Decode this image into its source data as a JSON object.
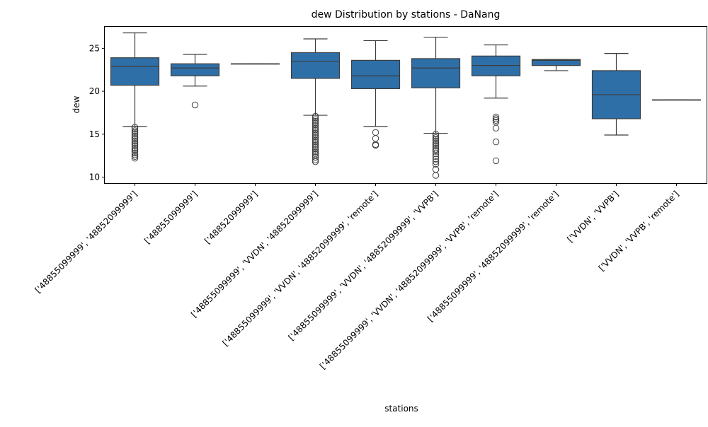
{
  "chart_data": {
    "type": "box",
    "title": "dew Distribution by stations - DaNang",
    "xlabel": "stations",
    "ylabel": "dew",
    "ylim": [
      9.3,
      27.5
    ],
    "yticks": [
      10,
      15,
      20,
      25
    ],
    "grid": false,
    "legend": "none",
    "colors": {
      "box": "#2f6fa7",
      "line": "#3d3d3d"
    },
    "categories": [
      "['48855099999', '48852099999']",
      "['48855099999']",
      "['48852099999']",
      "['48855099999', 'VVDN', '48852099999']",
      "['48855099999', 'VVDN', '48852099999', 'remote']",
      "['48855099999', 'VVDN', '48852099999', 'VVPB']",
      "['48855099999', 'VVDN', '48852099999', 'VVPB', 'remote']",
      "['48855099999', '48852099999', 'remote']",
      "['VVDN', 'VVPB']",
      "['VVDN', 'VVPB', 'remote']"
    ],
    "boxes": [
      {
        "whisker_low": 15.9,
        "q1": 20.7,
        "median": 22.9,
        "q3": 23.9,
        "whisker_high": 26.8,
        "outliers": [
          15.8,
          15.6,
          15.4,
          15.2,
          15.0,
          14.8,
          14.6,
          14.4,
          14.2,
          14.0,
          13.8,
          13.6,
          13.4,
          13.2,
          13.0,
          12.8,
          12.6,
          12.4,
          12.2
        ]
      },
      {
        "whisker_low": 20.6,
        "q1": 21.8,
        "median": 22.7,
        "q3": 23.2,
        "whisker_high": 24.3,
        "outliers": [
          18.4
        ]
      },
      {
        "whisker_low": 23.2,
        "q1": 23.2,
        "median": 23.2,
        "q3": 23.2,
        "whisker_high": 23.2,
        "outliers": []
      },
      {
        "whisker_low": 17.2,
        "q1": 21.5,
        "median": 23.5,
        "q3": 24.5,
        "whisker_high": 26.1,
        "outliers": [
          17.1,
          16.9,
          16.7,
          16.5,
          16.3,
          16.1,
          15.9,
          15.7,
          15.5,
          15.3,
          15.1,
          14.9,
          14.7,
          14.5,
          14.3,
          14.1,
          13.9,
          13.7,
          13.5,
          13.3,
          13.1,
          12.9,
          12.7,
          12.5,
          12.3,
          12.0,
          11.8
        ]
      },
      {
        "whisker_low": 15.9,
        "q1": 20.3,
        "median": 21.8,
        "q3": 23.6,
        "whisker_high": 25.9,
        "outliers": [
          15.2,
          14.5,
          13.8,
          13.7
        ]
      },
      {
        "whisker_low": 15.1,
        "q1": 20.4,
        "median": 22.7,
        "q3": 23.8,
        "whisker_high": 26.3,
        "outliers": [
          15.0,
          14.8,
          14.6,
          14.4,
          14.2,
          14.0,
          13.8,
          13.6,
          13.4,
          13.2,
          13.0,
          12.7,
          12.4,
          12.1,
          11.8,
          11.5,
          10.9,
          10.2
        ]
      },
      {
        "whisker_low": 19.2,
        "q1": 21.8,
        "median": 23.0,
        "q3": 24.1,
        "whisker_high": 25.4,
        "outliers": [
          17.0,
          16.8,
          16.6,
          16.4,
          15.7,
          14.1,
          11.9
        ]
      },
      {
        "whisker_low": 22.4,
        "q1": 23.0,
        "median": 23.6,
        "q3": 23.7,
        "whisker_high": 23.7,
        "outliers": []
      },
      {
        "whisker_low": 14.9,
        "q1": 16.8,
        "median": 19.6,
        "q3": 22.4,
        "whisker_high": 24.4,
        "outliers": []
      },
      {
        "whisker_low": 19.0,
        "q1": 19.0,
        "median": 19.0,
        "q3": 19.0,
        "whisker_high": 19.0,
        "outliers": []
      }
    ]
  }
}
